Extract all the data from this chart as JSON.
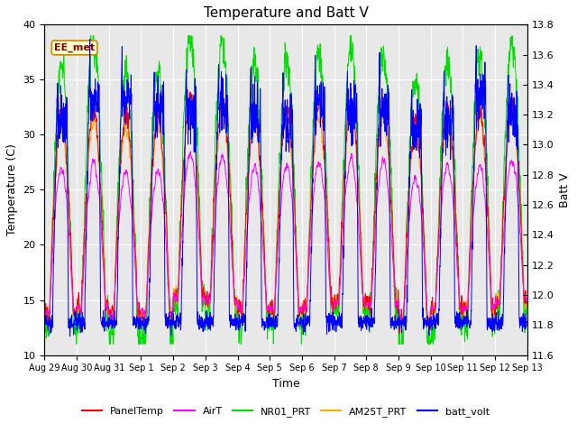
{
  "title": "Temperature and Batt V",
  "xlabel": "Time",
  "ylabel_left": "Temperature (C)",
  "ylabel_right": "Batt V",
  "annotation": "EE_met",
  "ylim_left": [
    10,
    40
  ],
  "ylim_right": [
    11.6,
    13.8
  ],
  "yticks_left": [
    10,
    15,
    20,
    25,
    30,
    35,
    40
  ],
  "yticks_right": [
    11.6,
    11.8,
    12.0,
    12.2,
    12.4,
    12.6,
    12.8,
    13.0,
    13.2,
    13.4,
    13.6,
    13.8
  ],
  "xtick_labels": [
    "Aug 29",
    "Aug 30",
    "Aug 31",
    "Sep 1",
    "Sep 2",
    "Sep 3",
    "Sep 4",
    "Sep 5",
    "Sep 6",
    "Sep 7",
    "Sep 8",
    "Sep 9",
    "Sep 10",
    "Sep 11",
    "Sep 12",
    "Sep 13"
  ],
  "colors": {
    "PanelTemp": "#ff0000",
    "AirT": "#ff00ff",
    "NR01_PRT": "#00dd00",
    "AM25T_PRT": "#ffaa00",
    "batt_volt": "#0000ff"
  },
  "bg_color": "#e8e8e8",
  "n_days": 15,
  "pts_per_day": 144
}
